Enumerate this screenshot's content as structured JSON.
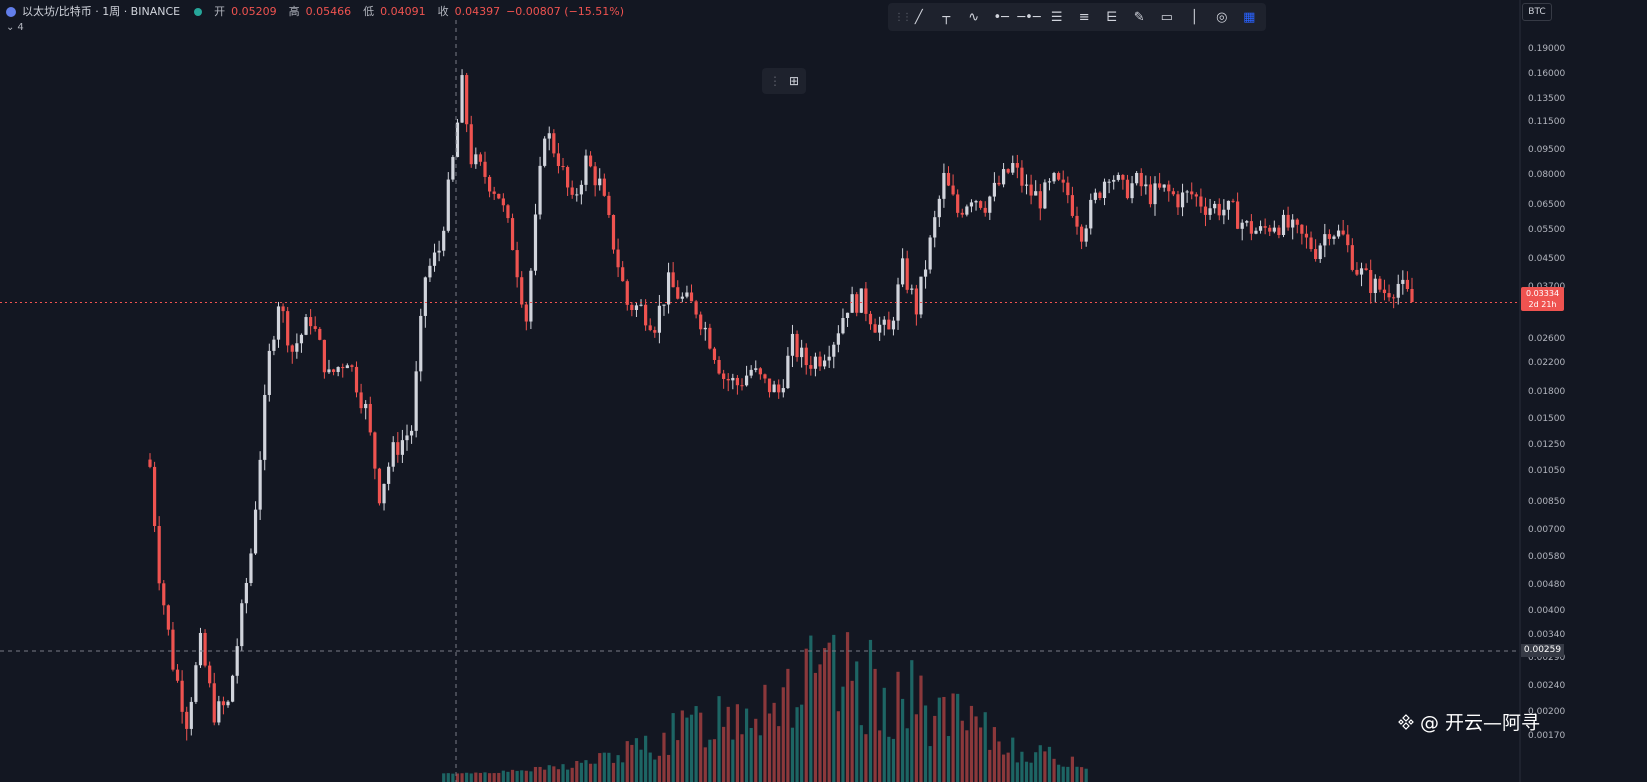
{
  "header": {
    "symbol": "以太坊/比特币 · 1周 · BINANCE",
    "open_label": "开",
    "open_value": "0.05209",
    "high_label": "高",
    "high_value": "0.05466",
    "low_label": "低",
    "low_value": "0.04091",
    "close_label": "收",
    "close_value": "0.04397",
    "change": "−0.00807 (−15.51%)",
    "sub_indicator": "4"
  },
  "toolbar": {
    "icons": [
      "trend-line-icon",
      "cross-line-icon",
      "zigzag-icon",
      "horizontal-ray-icon",
      "horizontal-line-icon",
      "parallel-channel-icon",
      "fib-retracement-icon",
      "fib-fan-icon",
      "brush-icon",
      "rectangle-icon",
      "vertical-line-icon",
      "target-icon",
      "layout-grid-icon"
    ]
  },
  "price_axis": {
    "currency": "BTC",
    "current_price": "0.03334",
    "countdown": "2d 21h",
    "crosshair_price": "0.00259"
  },
  "watermark": {
    "text": "@ 开云—阿寻"
  },
  "colors": {
    "up": "#d1d4dc",
    "down": "#ef5350",
    "vol_up": "#26a69a",
    "vol_down": "#ef5350"
  },
  "chart_data": {
    "type": "candlestick",
    "scale": "log",
    "y_ticks": [
      0.19,
      0.16,
      0.135,
      0.115,
      0.095,
      0.08,
      0.065,
      0.055,
      0.045,
      0.037,
      0.026,
      0.022,
      0.018,
      0.015,
      0.0125,
      0.0105,
      0.0085,
      0.007,
      0.0058,
      0.0048,
      0.004,
      0.0034,
      0.0029,
      0.0024,
      0.002,
      0.0017
    ],
    "y_tick_labels": [
      "0.19000",
      "0.16000",
      "0.13500",
      "0.11500",
      "0.09500",
      "0.08000",
      "0.06500",
      "0.05500",
      "0.04500",
      "0.03700",
      "0.02600",
      "0.02200",
      "0.01800",
      "0.01500",
      "0.01250",
      "0.01050",
      "0.00850",
      "0.00700",
      "0.00580",
      "0.00480",
      "0.00400",
      "0.00340",
      "0.00290",
      "0.00240",
      "0.00200",
      "0.00170"
    ],
    "price_path": [
      [
        0,
        0.0108
      ],
      [
        2,
        0.0052
      ],
      [
        5,
        0.0028
      ],
      [
        8,
        0.0019
      ],
      [
        11,
        0.0032
      ],
      [
        14,
        0.002
      ],
      [
        17,
        0.0021
      ],
      [
        22,
        0.006
      ],
      [
        26,
        0.023
      ],
      [
        28,
        0.034
      ],
      [
        31,
        0.024
      ],
      [
        35,
        0.03
      ],
      [
        39,
        0.02
      ],
      [
        43,
        0.023
      ],
      [
        47,
        0.016
      ],
      [
        50,
        0.009
      ],
      [
        53,
        0.012
      ],
      [
        57,
        0.014
      ],
      [
        60,
        0.04
      ],
      [
        63,
        0.048
      ],
      [
        66,
        0.088
      ],
      [
        68,
        0.148
      ],
      [
        70,
        0.09
      ],
      [
        73,
        0.08
      ],
      [
        76,
        0.07
      ],
      [
        79,
        0.05
      ],
      [
        82,
        0.03
      ],
      [
        86,
        0.11
      ],
      [
        89,
        0.09
      ],
      [
        92,
        0.065
      ],
      [
        95,
        0.088
      ],
      [
        98,
        0.075
      ],
      [
        101,
        0.05
      ],
      [
        104,
        0.033
      ],
      [
        107,
        0.032
      ],
      [
        110,
        0.029
      ],
      [
        113,
        0.038
      ],
      [
        116,
        0.034
      ],
      [
        119,
        0.032
      ],
      [
        122,
        0.026
      ],
      [
        125,
        0.02
      ],
      [
        128,
        0.019
      ],
      [
        131,
        0.021
      ],
      [
        134,
        0.019
      ],
      [
        137,
        0.018
      ],
      [
        140,
        0.025
      ],
      [
        143,
        0.022
      ],
      [
        146,
        0.023
      ],
      [
        149,
        0.026
      ],
      [
        152,
        0.033
      ],
      [
        155,
        0.034
      ],
      [
        158,
        0.029
      ],
      [
        161,
        0.027
      ],
      [
        164,
        0.042
      ],
      [
        167,
        0.032
      ],
      [
        170,
        0.05
      ],
      [
        173,
        0.078
      ],
      [
        176,
        0.062
      ],
      [
        179,
        0.07
      ],
      [
        182,
        0.066
      ],
      [
        185,
        0.075
      ],
      [
        188,
        0.085
      ],
      [
        191,
        0.072
      ],
      [
        194,
        0.068
      ],
      [
        197,
        0.076
      ],
      [
        200,
        0.07
      ],
      [
        203,
        0.055
      ],
      [
        206,
        0.068
      ],
      [
        209,
        0.083
      ],
      [
        212,
        0.072
      ],
      [
        215,
        0.076
      ],
      [
        218,
        0.07
      ],
      [
        221,
        0.072
      ],
      [
        224,
        0.068
      ],
      [
        227,
        0.07
      ],
      [
        230,
        0.065
      ],
      [
        233,
        0.064
      ],
      [
        236,
        0.062
      ],
      [
        239,
        0.056
      ],
      [
        242,
        0.054
      ],
      [
        245,
        0.058
      ],
      [
        248,
        0.056
      ],
      [
        251,
        0.052
      ],
      [
        254,
        0.048
      ],
      [
        257,
        0.056
      ],
      [
        260,
        0.052
      ],
      [
        263,
        0.042
      ],
      [
        266,
        0.038
      ],
      [
        269,
        0.036
      ],
      [
        272,
        0.038
      ],
      [
        275,
        0.0334
      ]
    ],
    "last_close": 0.03334,
    "volume_note": "volume histogram at bottom, relative heights"
  }
}
